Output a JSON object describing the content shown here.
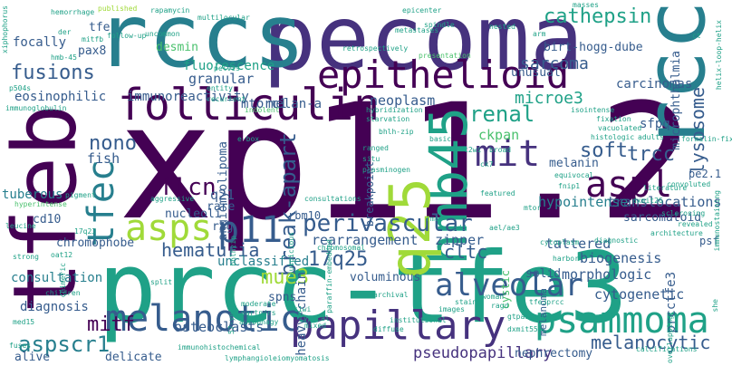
{
  "words": {
    "xp112": "xp11.2",
    "prcc_tfe3": "prcc-tfe3",
    "pecoma": "pecoma",
    "rccs": "rccs",
    "tfeb": "tfeb",
    "rcc": "rcc",
    "epithelioid": "epithelioid",
    "folliculin": "folliculin",
    "hmb45": "hmb45",
    "q25": "q25",
    "asps": "asps",
    "aspl": "aspl",
    "tfec": "tfec",
    "p11": "p11",
    "melanotic": "melanotic",
    "papillary": "papillary",
    "psammoma": "psammoma",
    "alveolar": "alveolar",
    "perivascular": "perivascular",
    "mit": "mit",
    "cathepsin": "cathepsin",
    "sarcoma": "sarcoma",
    "fusions": "fusions",
    "translocations": "translocations",
    "lysosome": "lysosome",
    "hematuria": "hematuria",
    "soft": "soft",
    "trcc": "trcc",
    "nono": "nono",
    "flcn": "flcn",
    "microe3": "microe3",
    "renal": "renal",
    "break_apart": "break-apart",
    "seventeen_q25": "17q25",
    "mue3": "mue3",
    "mitf": "mitf",
    "aspscr1": "aspscr1",
    "melanocytic": "melanocytic",
    "cltc": "cltc",
    "pseudopapillary": "pseudopapillary",
    "tattered": "tattered",
    "biogenesis": "biogenesis",
    "rearrangement": "rearrangement",
    "zipper": "zipper",
    "morphologic": "morphologic",
    "cytogenetic": "cytogenetic",
    "prcctfe3": "prcctfe3",
    "hypointense": "hypointense",
    "sarcomatoid": "sarcomatoid",
    "neoplasm": "neoplasm",
    "granular": "granular",
    "mtorc1": "mtorc1",
    "fluorescence": "fluorescence",
    "eosinophilic": "eosinophilic",
    "immunoreactivity": "immunoreactivity",
    "unclassified": "unclassified",
    "voluminous": "voluminous",
    "consultation": "consultation",
    "osteoclasts": "osteoclasts",
    "heavy_chain": "heavy-chain",
    "carcinomas": "carcinomas",
    "microphthalmia": "microphthalmia",
    "birt_hogg_dube": "birt-hogg-dube",
    "ckpan": "ckpan",
    "melan_a": "melan-a",
    "tuberous": "tuberous",
    "diagnosis": "diagnosis",
    "focally": "focally",
    "desmin": "desmin",
    "pax8": "pax8",
    "q21": "q21",
    "nucleoli": "nucleoli",
    "angiomyolipoma": "angiomyolipoma",
    "fish": "fish",
    "alive": "alive",
    "delicate": "delicate",
    "nephrectomy": "nephrectomy",
    "chromophobe": "chromophobe",
    "sfpq": "sfpq",
    "pe21": "pe2.1",
    "psf": "psf",
    "spns": "spns",
    "rbm10": "rbm10",
    "cd10": "cd10",
    "rare": "rare",
    "rag": "rag",
    "breakpoint": "breakpoint",
    "melanin": "melanin",
    "unusual": "unusual",
    "tfe": "tfe",
    "solid": "solid",
    "cystic": "cystic",
    "melanoma": "melanoma",
    "small": [
      "xiphophorus",
      "hemorrhage",
      "published",
      "rapamycin",
      "multilocular",
      "epicenter",
      "spindle",
      "masses",
      "der",
      "mitfb",
      "follow-up",
      "uncommon",
      "metastases",
      "nested",
      "arm",
      "ct",
      "hmb-45",
      "retrospectively",
      "presentation",
      "helix-loop-helix",
      "p504s",
      "entity",
      "recurrent",
      "pelvis",
      "immunoglobulin",
      "indolent",
      "hybridization",
      "starvation",
      "bhlh-zip",
      "isointense",
      "fixation",
      "vacuolated",
      "histologic",
      "adults",
      "formalin-fixed",
      "ranged",
      "broad",
      "ck7",
      "equivocal",
      "fnip1",
      "situ",
      "plasminogen",
      "e-box",
      "aggressive",
      "basic",
      "t2wi",
      "pigment",
      "hyperintense",
      "leucine",
      "strong",
      "children",
      "med15",
      "fuses",
      "immunohistochemical",
      "lymphangioleiomyomatosis",
      "calcifications",
      "17q23",
      "oat12",
      "chimeric",
      "rmc",
      "add",
      "ael/ae3",
      "harbor",
      "diagnostic",
      "woman",
      "ragd",
      "gtpases",
      "dxmit55",
      "overlapping",
      "dxmit26",
      "immunostaining",
      "architecture",
      "revealed",
      "sclerosing",
      "literature",
      "57-year-old",
      "moderate",
      "partners",
      "autophagy",
      "mixed",
      "suspicious",
      "archival",
      "institutional",
      "images",
      "t1wi",
      "typical",
      "chromosomal",
      "paraffin-embedded",
      "diffuse",
      "featured",
      "mtor",
      "stain",
      "tfe3prcc",
      "split",
      "bhlhzip",
      "she",
      "convoluted",
      "consultations",
      "cytoplasm"
    ]
  }
}
